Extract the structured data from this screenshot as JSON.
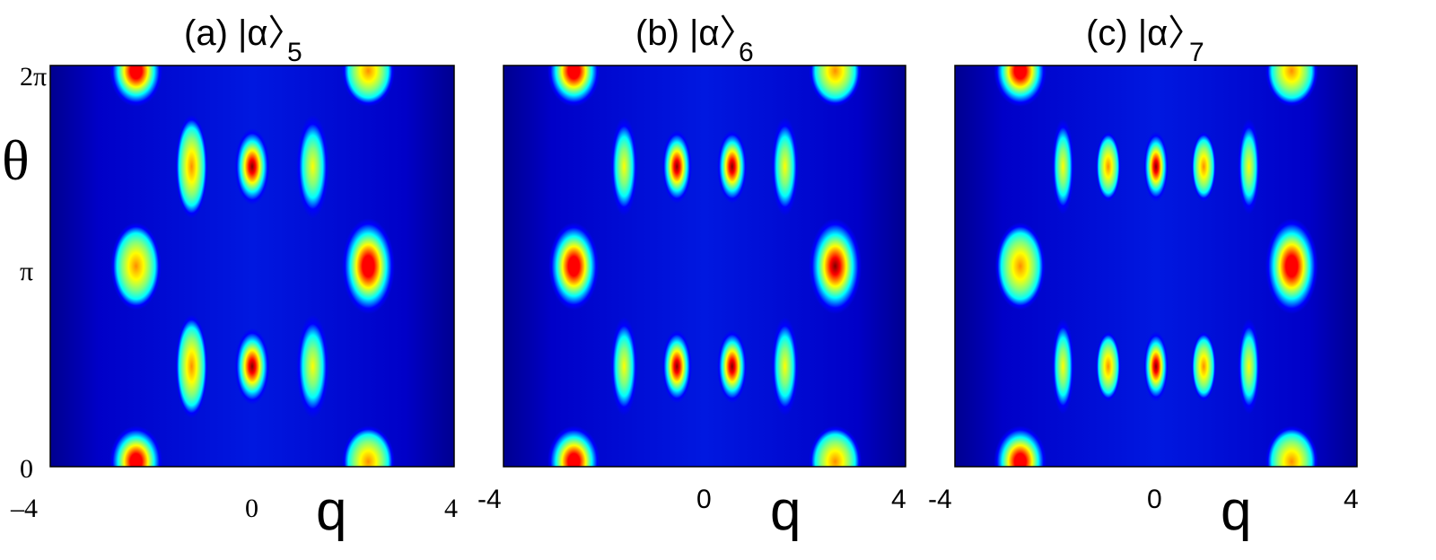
{
  "figure": {
    "panels": [
      {
        "title": "(a) |α〉",
        "subscript": "5",
        "xticks": [
          "–4",
          "0",
          "4"
        ],
        "xlabel": "q",
        "yticks": [
          "0",
          "π",
          "2π"
        ],
        "ylabel": "θ"
      },
      {
        "title": "(b) |α〉",
        "subscript": "6",
        "xticks": [
          "-4",
          "0",
          "4"
        ],
        "xlabel": "q",
        "yticks": [],
        "ylabel": ""
      },
      {
        "title": "(c) |α〉",
        "subscript": "7",
        "xticks": [
          "-4",
          "0",
          "4"
        ],
        "xlabel": "q",
        "yticks": [],
        "ylabel": ""
      }
    ]
  },
  "colormap": [
    "#00008f",
    "#0000ff",
    "#00ffff",
    "#ffff00",
    "#ff0000",
    "#800000"
  ],
  "chart_data": [
    {
      "type": "heatmap",
      "title": "(a) |α〉5",
      "xlabel": "q",
      "ylabel": "θ",
      "xlim": [
        -4,
        4
      ],
      "ylim": [
        0,
        6.2832
      ],
      "background_level": 0.08,
      "peaks": [
        {
          "q": -2.3,
          "theta": 6.2,
          "intensity": 0.93,
          "wq": 0.42,
          "wt": 0.45
        },
        {
          "q": 2.3,
          "theta": 6.2,
          "intensity": 0.72,
          "wq": 0.42,
          "wt": 0.45
        },
        {
          "q": -2.3,
          "theta": 0.08,
          "intensity": 0.93,
          "wq": 0.42,
          "wt": 0.45
        },
        {
          "q": 2.3,
          "theta": 0.08,
          "intensity": 0.72,
          "wq": 0.42,
          "wt": 0.45
        },
        {
          "q": -2.3,
          "theta": 3.14,
          "intensity": 0.78,
          "wq": 0.4,
          "wt": 0.55
        },
        {
          "q": 2.3,
          "theta": 3.14,
          "intensity": 0.92,
          "wq": 0.42,
          "wt": 0.6
        },
        {
          "q": 0,
          "theta": 4.7,
          "intensity": 1.0,
          "wq": 0.28,
          "wt": 0.48
        },
        {
          "q": 0,
          "theta": 1.57,
          "intensity": 1.0,
          "wq": 0.28,
          "wt": 0.48
        },
        {
          "q": -1.2,
          "theta": 4.7,
          "intensity": 0.7,
          "wq": 0.26,
          "wt": 0.65
        },
        {
          "q": 1.2,
          "theta": 4.7,
          "intensity": 0.68,
          "wq": 0.26,
          "wt": 0.65
        },
        {
          "q": -1.2,
          "theta": 1.57,
          "intensity": 0.7,
          "wq": 0.26,
          "wt": 0.65
        },
        {
          "q": 1.2,
          "theta": 1.57,
          "intensity": 0.68,
          "wq": 0.26,
          "wt": 0.65
        }
      ]
    },
    {
      "type": "heatmap",
      "title": "(b) |α〉6",
      "xlabel": "q",
      "ylabel": "",
      "xlim": [
        -4,
        4
      ],
      "ylim": [
        0,
        6.2832
      ],
      "background_level": 0.08,
      "peaks": [
        {
          "q": -2.6,
          "theta": 6.2,
          "intensity": 0.95,
          "wq": 0.42,
          "wt": 0.45
        },
        {
          "q": 2.6,
          "theta": 6.2,
          "intensity": 0.74,
          "wq": 0.42,
          "wt": 0.45
        },
        {
          "q": -2.6,
          "theta": 0.08,
          "intensity": 0.95,
          "wq": 0.42,
          "wt": 0.45
        },
        {
          "q": 2.6,
          "theta": 0.08,
          "intensity": 0.74,
          "wq": 0.42,
          "wt": 0.45
        },
        {
          "q": -2.6,
          "theta": 3.14,
          "intensity": 0.85,
          "wq": 0.4,
          "wt": 0.55
        },
        {
          "q": 2.6,
          "theta": 3.14,
          "intensity": 1.0,
          "wq": 0.42,
          "wt": 0.6
        },
        {
          "q": -0.55,
          "theta": 4.7,
          "intensity": 1.0,
          "wq": 0.24,
          "wt": 0.46
        },
        {
          "q": 0.55,
          "theta": 4.7,
          "intensity": 1.0,
          "wq": 0.24,
          "wt": 0.46
        },
        {
          "q": -0.55,
          "theta": 1.57,
          "intensity": 1.0,
          "wq": 0.24,
          "wt": 0.46
        },
        {
          "q": 0.55,
          "theta": 1.57,
          "intensity": 1.0,
          "wq": 0.24,
          "wt": 0.46
        },
        {
          "q": -1.6,
          "theta": 4.7,
          "intensity": 0.66,
          "wq": 0.22,
          "wt": 0.62
        },
        {
          "q": 1.6,
          "theta": 4.7,
          "intensity": 0.6,
          "wq": 0.22,
          "wt": 0.62
        },
        {
          "q": -1.6,
          "theta": 1.57,
          "intensity": 0.66,
          "wq": 0.22,
          "wt": 0.62
        },
        {
          "q": 1.6,
          "theta": 1.57,
          "intensity": 0.6,
          "wq": 0.22,
          "wt": 0.62
        }
      ]
    },
    {
      "type": "heatmap",
      "title": "(c) |α〉7",
      "xlabel": "q",
      "ylabel": "",
      "xlim": [
        -4,
        4
      ],
      "ylim": [
        0,
        6.2832
      ],
      "background_level": 0.08,
      "peaks": [
        {
          "q": -2.7,
          "theta": 6.2,
          "intensity": 0.92,
          "wq": 0.42,
          "wt": 0.45
        },
        {
          "q": 2.7,
          "theta": 6.2,
          "intensity": 0.72,
          "wq": 0.42,
          "wt": 0.45
        },
        {
          "q": -2.7,
          "theta": 0.08,
          "intensity": 0.92,
          "wq": 0.42,
          "wt": 0.45
        },
        {
          "q": 2.7,
          "theta": 0.08,
          "intensity": 0.72,
          "wq": 0.42,
          "wt": 0.45
        },
        {
          "q": -2.7,
          "theta": 3.14,
          "intensity": 0.82,
          "wq": 0.4,
          "wt": 0.55
        },
        {
          "q": 2.7,
          "theta": 3.14,
          "intensity": 0.95,
          "wq": 0.42,
          "wt": 0.6
        },
        {
          "q": 0,
          "theta": 4.7,
          "intensity": 1.0,
          "wq": 0.2,
          "wt": 0.44
        },
        {
          "q": 0,
          "theta": 1.57,
          "intensity": 1.0,
          "wq": 0.2,
          "wt": 0.44
        },
        {
          "q": -0.95,
          "theta": 4.7,
          "intensity": 0.78,
          "wq": 0.2,
          "wt": 0.44
        },
        {
          "q": 0.95,
          "theta": 4.7,
          "intensity": 0.74,
          "wq": 0.2,
          "wt": 0.44
        },
        {
          "q": -0.95,
          "theta": 1.57,
          "intensity": 0.78,
          "wq": 0.2,
          "wt": 0.44
        },
        {
          "q": 0.95,
          "theta": 1.57,
          "intensity": 0.74,
          "wq": 0.2,
          "wt": 0.44
        },
        {
          "q": -1.85,
          "theta": 4.7,
          "intensity": 0.55,
          "wq": 0.18,
          "wt": 0.6
        },
        {
          "q": 1.85,
          "theta": 4.7,
          "intensity": 0.5,
          "wq": 0.18,
          "wt": 0.6
        },
        {
          "q": -1.85,
          "theta": 1.57,
          "intensity": 0.55,
          "wq": 0.18,
          "wt": 0.6
        },
        {
          "q": 1.85,
          "theta": 1.57,
          "intensity": 0.5,
          "wq": 0.18,
          "wt": 0.6
        }
      ]
    }
  ]
}
